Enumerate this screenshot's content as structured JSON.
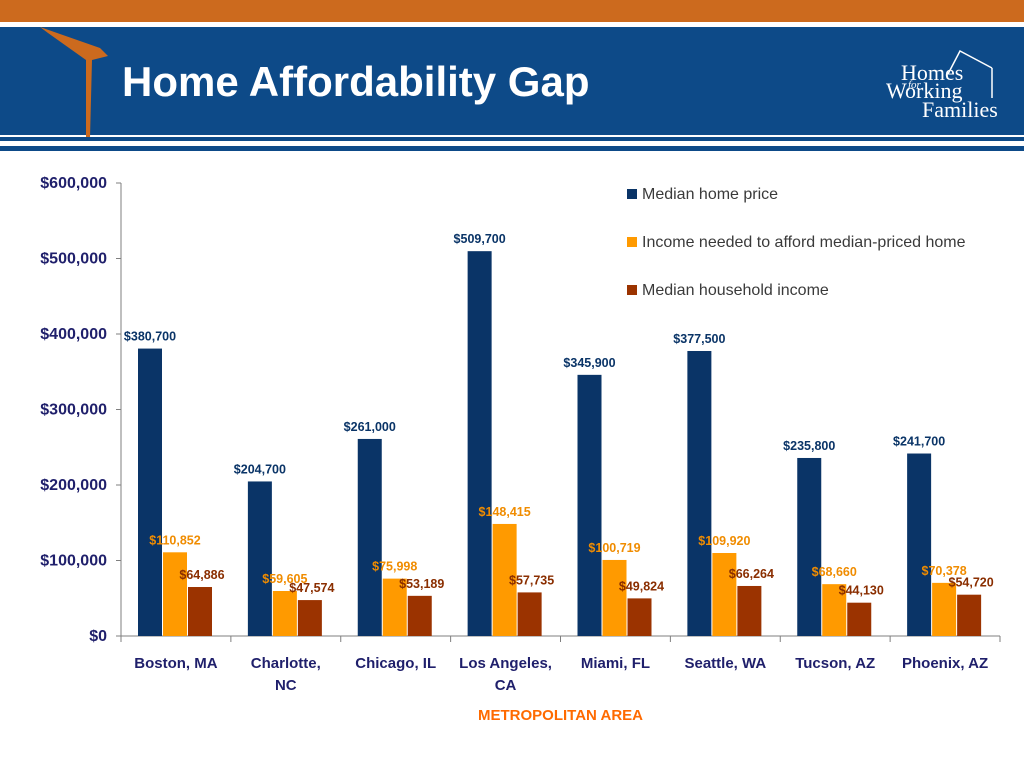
{
  "slide": {
    "title": "Home Affordability Gap",
    "logo": {
      "line1": "Homes",
      "line2": "for",
      "line3": "Working",
      "line4": "Families"
    }
  },
  "colors": {
    "header_blue": "#0d4a88",
    "top_orange": "#cc6a1e",
    "series_home_price": "#0a3467",
    "series_income_needed": "#ff9a00",
    "series_household_income": "#9b3300",
    "xlabel_color": "#ff6a00"
  },
  "chart_data": {
    "type": "bar",
    "xlabel": "METROPOLITAN AREA",
    "ylabel": "",
    "ylim": [
      0,
      600000
    ],
    "yticks": [
      "$0",
      "$100,000",
      "$200,000",
      "$300,000",
      "$400,000",
      "$500,000",
      "$600,000"
    ],
    "ytick_values": [
      0,
      100000,
      200000,
      300000,
      400000,
      500000,
      600000
    ],
    "legend_position": "top-right",
    "grid": false,
    "categories": [
      [
        "Boston, MA"
      ],
      [
        "Charlotte,",
        "NC"
      ],
      [
        "Chicago, IL"
      ],
      [
        "Los Angeles,",
        "CA"
      ],
      [
        "Miami, FL"
      ],
      [
        "Seattle, WA"
      ],
      [
        "Tucson, AZ"
      ],
      [
        "Phoenix, AZ"
      ]
    ],
    "series": [
      {
        "name": "Median home price",
        "values": [
          380700,
          204700,
          261000,
          509700,
          345900,
          377500,
          235800,
          241700
        ],
        "labels": [
          "$380,700",
          "$204,700",
          "$261,000",
          "$509,700",
          "$345,900",
          "$377,500",
          "$235,800",
          "$241,700"
        ]
      },
      {
        "name": "Income needed to afford median-priced home",
        "values": [
          110852,
          59605,
          75998,
          148415,
          100719,
          109920,
          68660,
          70378
        ],
        "labels": [
          "$110,852",
          "$59,605",
          "$75,998",
          "$148,415",
          "$100,719",
          "$109,920",
          "$68,660",
          "$70,378"
        ]
      },
      {
        "name": "Median household income",
        "values": [
          64886,
          47574,
          53189,
          57735,
          49824,
          66264,
          44130,
          54720
        ],
        "labels": [
          "$64,886",
          "$47,574",
          "$53,189",
          "$57,735",
          "$49,824",
          "$66,264",
          "$44,130",
          "$54,720"
        ]
      }
    ]
  }
}
